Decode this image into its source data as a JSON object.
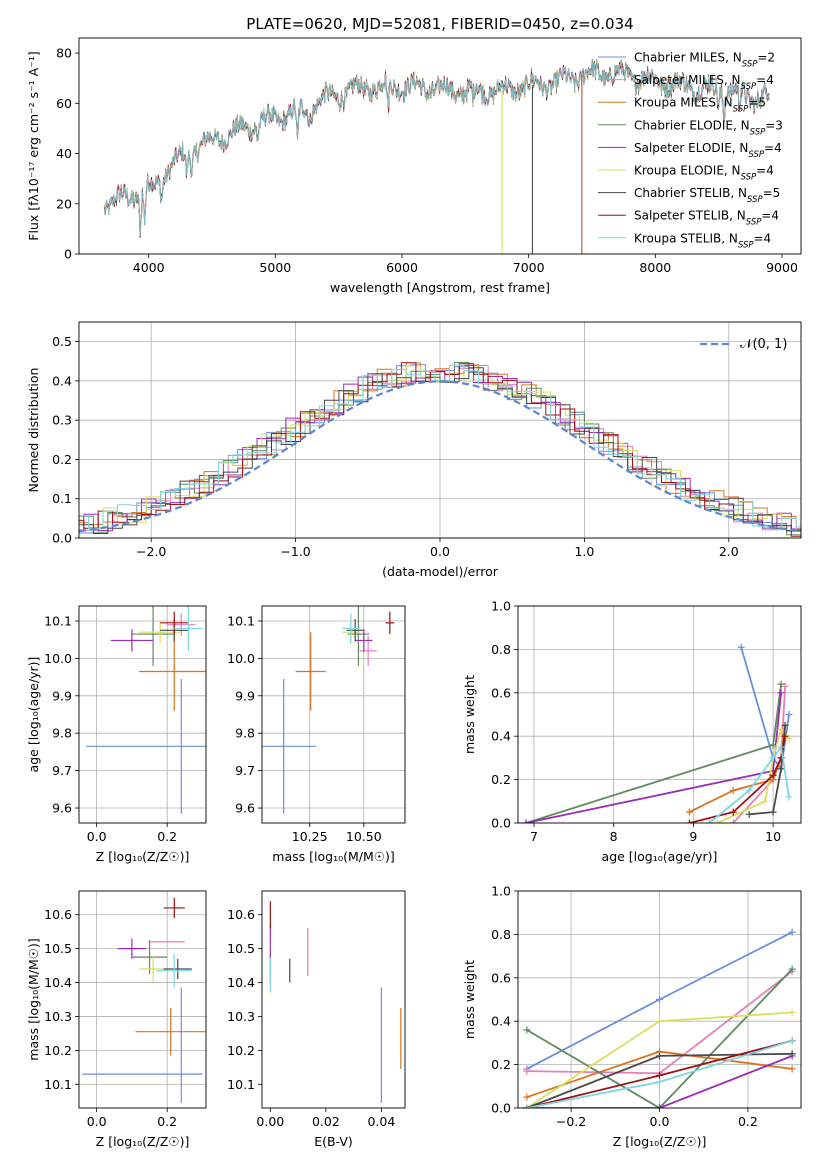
{
  "figure_title": "PLATE=0620, MJD=52081, FIBERID=0450, z=0.034",
  "colors": {
    "Chabrier MILES": "#6b8fdc",
    "Salpeter MILES": "#e67fb8",
    "Kroupa MILES": "#d9741f",
    "Chabrier ELODIE": "#5f8a5f",
    "Salpeter ELODIE": "#9a2eb5",
    "Kroupa ELODIE": "#d8e05a",
    "Chabrier STELIB": "#4a4a4a",
    "Salpeter STELIB": "#a01010",
    "Kroupa STELIB": "#7dd6df",
    "gaussian": "#5b86d6",
    "grid": "#b0b0b0"
  },
  "chart_data": [
    {
      "type": "line",
      "title": "PLATE=0620, MJD=52081, FIBERID=0450, z=0.034",
      "xlabel": "wavelength [Angstrom, rest frame]",
      "ylabel": "Flux [fλ10⁻¹⁷ erg cm⁻² s⁻¹ A⁻¹]",
      "xlim": [
        3450,
        9150
      ],
      "ylim": [
        0,
        86
      ],
      "xticks": [
        4000,
        5000,
        6000,
        7000,
        8000,
        9000
      ],
      "yticks": [
        0,
        20,
        40,
        60,
        80
      ],
      "grid": false,
      "legend_position": "top-right",
      "legend": [
        {
          "name": "Chabrier MILES",
          "nssp": "2"
        },
        {
          "name": "Salpeter MILES",
          "nssp": "4"
        },
        {
          "name": "Kroupa MILES",
          "nssp": "5"
        },
        {
          "name": "Chabrier ELODIE",
          "nssp": "3"
        },
        {
          "name": "Salpeter ELODIE",
          "nssp": "4"
        },
        {
          "name": "Kroupa ELODIE",
          "nssp": "4"
        },
        {
          "name": "Chabrier STELIB",
          "nssp": "5"
        },
        {
          "name": "Salpeter STELIB",
          "nssp": "4"
        },
        {
          "name": "Kroupa STELIB",
          "nssp": "4"
        }
      ],
      "continuum": [
        [
          3650,
          20
        ],
        [
          3800,
          22
        ],
        [
          3950,
          25
        ],
        [
          4050,
          27
        ],
        [
          4150,
          34
        ],
        [
          4250,
          38
        ],
        [
          4400,
          43
        ],
        [
          4550,
          46
        ],
        [
          4700,
          49
        ],
        [
          4850,
          52
        ],
        [
          5000,
          54
        ],
        [
          5200,
          57
        ],
        [
          5400,
          62
        ],
        [
          5600,
          65
        ],
        [
          5800,
          67
        ],
        [
          6000,
          67
        ],
        [
          6200,
          66
        ],
        [
          6400,
          65
        ],
        [
          6600,
          65
        ],
        [
          6800,
          65
        ],
        [
          7000,
          67
        ],
        [
          7200,
          68
        ],
        [
          7400,
          71
        ],
        [
          7600,
          72
        ],
        [
          7800,
          71
        ],
        [
          8000,
          69
        ],
        [
          8200,
          67
        ],
        [
          8400,
          66
        ],
        [
          8600,
          65
        ],
        [
          8800,
          62
        ],
        [
          8900,
          63
        ]
      ],
      "features": [
        [
          3934,
          -14
        ],
        [
          3968,
          -12
        ],
        [
          4102,
          -7
        ],
        [
          4300,
          -8
        ],
        [
          4340,
          -6
        ],
        [
          4861,
          -5
        ],
        [
          5175,
          -14
        ],
        [
          5270,
          -6
        ],
        [
          5890,
          -10
        ],
        [
          6563,
          -5
        ],
        [
          8498,
          -6
        ],
        [
          8542,
          -8
        ],
        [
          8662,
          -7
        ]
      ],
      "drop_lines": [
        6790,
        7030,
        7420
      ]
    },
    {
      "type": "histogram",
      "xlabel": "(data-model)/error",
      "ylabel": "Normed distribution",
      "xlim": [
        -2.5,
        2.5
      ],
      "ylim": [
        0,
        0.55
      ],
      "xticks": [
        -2,
        -1,
        0,
        1,
        2
      ],
      "yticks": [
        0.0,
        0.1,
        0.2,
        0.3,
        0.4,
        0.5
      ],
      "grid": true,
      "legend": [
        "𝒩(0, 1)"
      ],
      "legend_position": "top-right",
      "reference_curve": "gaussian(0,1)",
      "bin_width": 0.1,
      "series_names": [
        "Chabrier MILES",
        "Salpeter MILES",
        "Kroupa MILES",
        "Chabrier ELODIE",
        "Salpeter ELODIE",
        "Kroupa ELODIE",
        "Chabrier STELIB",
        "Salpeter STELIB",
        "Kroupa STELIB"
      ]
    },
    {
      "type": "errorbar",
      "xlabel": "Z [log₁₀(Z/Z☉)]",
      "ylabel": "age  [log₁₀(age/yr)]",
      "xlim": [
        -0.05,
        0.31
      ],
      "ylim": [
        9.56,
        10.14
      ],
      "xticks": [
        0.0,
        0.2
      ],
      "yticks": [
        9.6,
        9.7,
        9.8,
        9.9,
        10.0,
        10.1
      ],
      "grid": true,
      "points": [
        {
          "s": "Chabrier MILES",
          "x": 0.24,
          "xe": 0.27,
          "y": 9.765,
          "ye": 0.18
        },
        {
          "s": "Salpeter MILES",
          "x": 0.24,
          "xe": 0.04,
          "y": 10.09,
          "ye": 0.03
        },
        {
          "s": "Kroupa MILES",
          "x": 0.22,
          "xe": 0.1,
          "y": 9.965,
          "ye": 0.105
        },
        {
          "s": "Chabrier ELODIE",
          "x": 0.16,
          "xe": 0.06,
          "y": 10.065,
          "ye": 0.085
        },
        {
          "s": "Salpeter ELODIE",
          "x": 0.1,
          "xe": 0.06,
          "y": 10.048,
          "ye": 0.03
        },
        {
          "s": "Kroupa ELODIE",
          "x": 0.18,
          "xe": 0.06,
          "y": 10.07,
          "ye": 0.03
        },
        {
          "s": "Chabrier STELIB",
          "x": 0.22,
          "xe": 0.04,
          "y": 10.075,
          "ye": 0.03
        },
        {
          "s": "Salpeter STELIB",
          "x": 0.22,
          "xe": 0.04,
          "y": 10.095,
          "ye": 0.03
        },
        {
          "s": "Kroupa STELIB",
          "x": 0.26,
          "xe": 0.04,
          "y": 10.08,
          "ye": 0.06
        }
      ]
    },
    {
      "type": "errorbar",
      "xlabel": "mass [log₁₀(M/M☉)]",
      "ylabel": "",
      "xlim": [
        10.03,
        10.69
      ],
      "ylim": [
        9.56,
        10.14
      ],
      "xticks": [
        10.25,
        10.5
      ],
      "yticks": [
        9.6,
        9.7,
        9.8,
        9.9,
        10.0,
        10.1
      ],
      "grid": true,
      "points": [
        {
          "s": "Chabrier MILES",
          "x": 10.13,
          "xe": 0.15,
          "y": 9.765,
          "ye": 0.18
        },
        {
          "s": "Salpeter MILES",
          "x": 10.52,
          "xe": 0.04,
          "y": 10.02,
          "ye": 0.04
        },
        {
          "s": "Kroupa MILES",
          "x": 10.255,
          "xe": 0.07,
          "y": 9.965,
          "ye": 0.105
        },
        {
          "s": "Chabrier ELODIE",
          "x": 10.475,
          "xe": 0.05,
          "y": 10.065,
          "ye": 0.085
        },
        {
          "s": "Salpeter ELODIE",
          "x": 10.5,
          "xe": 0.04,
          "y": 10.048,
          "ye": 0.03
        },
        {
          "s": "Kroupa ELODIE",
          "x": 10.44,
          "xe": 0.04,
          "y": 10.07,
          "ye": 0.03
        },
        {
          "s": "Chabrier STELIB",
          "x": 10.46,
          "xe": 0.04,
          "y": 10.075,
          "ye": 0.03
        },
        {
          "s": "Salpeter STELIB",
          "x": 10.62,
          "xe": 0.02,
          "y": 10.095,
          "ye": 0.03
        },
        {
          "s": "Kroupa STELIB",
          "x": 10.44,
          "xe": 0.04,
          "y": 10.08,
          "ye": 0.04
        }
      ]
    },
    {
      "type": "line",
      "xlabel": "age  [log₁₀(age/yr)]",
      "ylabel": "mass weight",
      "xlim": [
        6.8,
        10.35
      ],
      "ylim": [
        0,
        1
      ],
      "xticks": [
        7,
        8,
        9,
        10
      ],
      "yticks": [
        0.0,
        0.2,
        0.4,
        0.6,
        0.8,
        1.0
      ],
      "grid": true,
      "series": [
        {
          "s": "Chabrier MILES",
          "x": [
            9.6,
            10.0,
            10.1,
            10.2
          ],
          "y": [
            0.81,
            0.3,
            0.25,
            0.5
          ]
        },
        {
          "s": "Salpeter MILES",
          "x": [
            9.5,
            10.0,
            10.1,
            10.15
          ],
          "y": [
            0.0,
            0.2,
            0.3,
            0.63
          ]
        },
        {
          "s": "Kroupa MILES",
          "x": [
            8.95,
            9.5,
            10.0,
            10.1,
            10.15
          ],
          "y": [
            0.05,
            0.15,
            0.2,
            0.3,
            0.45
          ]
        },
        {
          "s": "Chabrier ELODIE",
          "x": [
            6.9,
            10.0,
            10.1
          ],
          "y": [
            0.0,
            0.36,
            0.64
          ]
        },
        {
          "s": "Salpeter ELODIE",
          "x": [
            6.9,
            10.0,
            10.1
          ],
          "y": [
            0.0,
            0.24,
            0.6
          ]
        },
        {
          "s": "Kroupa ELODIE",
          "x": [
            9.3,
            9.9,
            10.0,
            10.1,
            10.2
          ],
          "y": [
            0.0,
            0.1,
            0.3,
            0.43,
            0.39
          ]
        },
        {
          "s": "Chabrier STELIB",
          "x": [
            9.7,
            10.0,
            10.1,
            10.15
          ],
          "y": [
            0.04,
            0.05,
            0.25,
            0.45
          ]
        },
        {
          "s": "Salpeter STELIB",
          "x": [
            8.95,
            9.5,
            10.0,
            10.1,
            10.15
          ],
          "y": [
            0.0,
            0.05,
            0.22,
            0.3,
            0.4
          ]
        },
        {
          "s": "Kroupa STELIB",
          "x": [
            9.2,
            9.7,
            10.0,
            10.1,
            10.2
          ],
          "y": [
            0.0,
            0.15,
            0.3,
            0.35,
            0.12
          ]
        }
      ]
    },
    {
      "type": "errorbar",
      "xlabel": "Z [log₁₀(Z/Z☉)]",
      "ylabel": "mass [log₁₀(M/M☉)]",
      "xlim": [
        -0.05,
        0.31
      ],
      "ylim": [
        10.03,
        10.67
      ],
      "xticks": [
        0.0,
        0.2
      ],
      "yticks": [
        10.1,
        10.2,
        10.3,
        10.4,
        10.5,
        10.6
      ],
      "grid": true,
      "points": [
        {
          "s": "Chabrier MILES",
          "x": 0.13,
          "xe": 0.17,
          "y": 10.13,
          "ye": 0.0
        },
        {
          "s": "Chabrier MILES",
          "x": 0.24,
          "xe": 0.0,
          "y": 10.215,
          "ye": 0.17
        },
        {
          "s": "Salpeter MILES",
          "x": 0.2,
          "xe": 0.05,
          "y": 10.52,
          "ye": 0.0
        },
        {
          "s": "Kroupa MILES",
          "x": 0.21,
          "xe": 0.1,
          "y": 10.255,
          "ye": 0.07
        },
        {
          "s": "Chabrier ELODIE",
          "x": 0.15,
          "xe": 0.05,
          "y": 10.475,
          "ye": 0.05
        },
        {
          "s": "Salpeter ELODIE",
          "x": 0.1,
          "xe": 0.04,
          "y": 10.5,
          "ye": 0.03
        },
        {
          "s": "Kroupa ELODIE",
          "x": 0.16,
          "xe": 0.04,
          "y": 10.44,
          "ye": 0.04
        },
        {
          "s": "Chabrier STELIB",
          "x": 0.23,
          "xe": 0.04,
          "y": 10.44,
          "ye": 0.03
        },
        {
          "s": "Salpeter STELIB",
          "x": 0.22,
          "xe": 0.03,
          "y": 10.62,
          "ye": 0.03
        },
        {
          "s": "Kroupa STELIB",
          "x": 0.22,
          "xe": 0.05,
          "y": 10.435,
          "ye": 0.05
        }
      ]
    },
    {
      "type": "errorbar",
      "xlabel": "E(B-V)",
      "ylabel": "",
      "xlim": [
        -0.003,
        0.0485
      ],
      "ylim": [
        10.03,
        10.67
      ],
      "xticks": [
        0.0,
        0.02,
        0.04
      ],
      "yticks": [
        10.1,
        10.2,
        10.3,
        10.4,
        10.5,
        10.6
      ],
      "grid": false,
      "points": [
        {
          "s": "Chabrier MILES",
          "x": 0.04,
          "xe": 0.0,
          "y": 10.215,
          "ye": 0.17
        },
        {
          "s": "Salpeter MILES",
          "x": 0.0135,
          "xe": 0.0,
          "y": 10.49,
          "ye": 0.07
        },
        {
          "s": "Kroupa MILES",
          "x": 0.047,
          "xe": 0.0,
          "y": 10.235,
          "ye": 0.09
        },
        {
          "s": "Chabrier ELODIE",
          "x": 0.0,
          "xe": 0.0,
          "y": 10.44,
          "ye": 0.04
        },
        {
          "s": "Salpeter ELODIE",
          "x": 0.0,
          "xe": 0.0,
          "y": 10.52,
          "ye": 0.05
        },
        {
          "s": "Kroupa ELODIE",
          "x": 0.0,
          "xe": 0.0,
          "y": 10.41,
          "ye": 0.04
        },
        {
          "s": "Chabrier STELIB",
          "x": 0.007,
          "xe": 0.0,
          "y": 10.435,
          "ye": 0.035
        },
        {
          "s": "Salpeter STELIB",
          "x": 0.0,
          "xe": 0.0,
          "y": 10.6,
          "ye": 0.04
        },
        {
          "s": "Kroupa STELIB",
          "x": 0.0,
          "xe": 0.0,
          "y": 10.425,
          "ye": 0.05
        }
      ]
    },
    {
      "type": "line",
      "xlabel": "Z [log₁₀(Z/Z☉)]",
      "ylabel": "mass weight",
      "xlim": [
        -0.32,
        0.32
      ],
      "ylim": [
        0,
        1
      ],
      "xticks": [
        -0.2,
        0.0,
        0.2
      ],
      "yticks": [
        0.0,
        0.2,
        0.4,
        0.6,
        0.8,
        1.0
      ],
      "grid": true,
      "series": [
        {
          "s": "Chabrier MILES",
          "x": [
            -0.3,
            0.0,
            0.3
          ],
          "y": [
            0.18,
            0.5,
            0.81
          ]
        },
        {
          "s": "Salpeter MILES",
          "x": [
            -0.3,
            0.0,
            0.3
          ],
          "y": [
            0.17,
            0.16,
            0.63
          ]
        },
        {
          "s": "Kroupa MILES",
          "x": [
            -0.3,
            0.0,
            0.3
          ],
          "y": [
            0.05,
            0.26,
            0.18
          ]
        },
        {
          "s": "Chabrier ELODIE",
          "x": [
            -0.3,
            0.0,
            0.3
          ],
          "y": [
            0.36,
            0.0,
            0.64
          ]
        },
        {
          "s": "Salpeter ELODIE",
          "x": [
            -0.3,
            0.0,
            0.3
          ],
          "y": [
            0.0,
            0.0,
            0.24
          ]
        },
        {
          "s": "Kroupa ELODIE",
          "x": [
            -0.3,
            0.0,
            0.3
          ],
          "y": [
            0.0,
            0.4,
            0.44
          ]
        },
        {
          "s": "Chabrier STELIB",
          "x": [
            -0.3,
            0.0,
            0.3
          ],
          "y": [
            0.0,
            0.24,
            0.25
          ]
        },
        {
          "s": "Salpeter STELIB",
          "x": [
            -0.3,
            0.0,
            0.3
          ],
          "y": [
            0.0,
            0.15,
            0.31
          ]
        },
        {
          "s": "Kroupa STELIB",
          "x": [
            -0.3,
            0.0,
            0.3
          ],
          "y": [
            0.0,
            0.12,
            0.31
          ]
        }
      ]
    }
  ]
}
